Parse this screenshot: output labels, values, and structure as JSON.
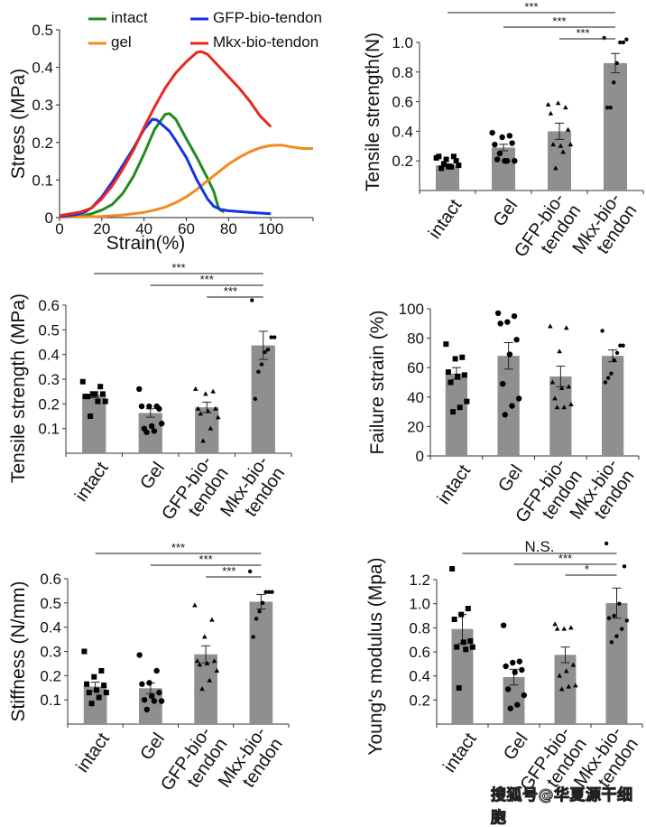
{
  "watermark": "搜狐号@华夏源干细胞",
  "category_labels": [
    [
      "intact"
    ],
    [
      "Gel"
    ],
    [
      "GFP-bio-",
      "tendon"
    ],
    [
      "Mkx-bio-",
      "tendon"
    ]
  ],
  "chart_data": [
    {
      "id": "stress-strain",
      "type": "line",
      "title": "",
      "xlabel": "Strain(%)",
      "ylabel": "Stress (MPa)",
      "xlim": [
        0,
        120
      ],
      "ylim": [
        0,
        0.5
      ],
      "xticks": [
        0,
        20,
        40,
        60,
        80,
        100
      ],
      "yticks": [
        0,
        0.1,
        0.2,
        0.3,
        0.4,
        0.5
      ],
      "ytick_labels": [
        "0",
        "0.1",
        "0.2",
        "0.3",
        "0.4",
        "0.5"
      ],
      "legend": "top",
      "series": [
        {
          "name": "intact",
          "color": "#1e8c1e",
          "x": [
            0,
            10,
            15,
            20,
            25,
            30,
            35,
            40,
            45,
            50,
            52,
            55,
            60,
            65,
            70,
            73,
            75,
            76,
            78
          ],
          "y": [
            0.001,
            0.004,
            0.01,
            0.02,
            0.035,
            0.065,
            0.11,
            0.17,
            0.235,
            0.275,
            0.277,
            0.262,
            0.21,
            0.16,
            0.105,
            0.07,
            0.03,
            0.02,
            0.015
          ]
        },
        {
          "name": "gel",
          "color": "#f28a1e",
          "x": [
            0,
            20,
            30,
            40,
            45,
            50,
            55,
            60,
            65,
            70,
            75,
            80,
            85,
            90,
            95,
            100,
            105,
            110,
            115,
            120
          ],
          "y": [
            0.001,
            0.003,
            0.007,
            0.014,
            0.02,
            0.028,
            0.04,
            0.055,
            0.075,
            0.098,
            0.12,
            0.142,
            0.16,
            0.175,
            0.186,
            0.192,
            0.193,
            0.188,
            0.184,
            0.184
          ]
        },
        {
          "name": "GFP-bio-tendon",
          "color": "#1432e6",
          "x": [
            0,
            8,
            12,
            15,
            20,
            25,
            30,
            35,
            40,
            44,
            46,
            48,
            52,
            55,
            60,
            65,
            70,
            73,
            76,
            80,
            90,
            100
          ],
          "y": [
            0.003,
            0.008,
            0.015,
            0.025,
            0.055,
            0.095,
            0.14,
            0.185,
            0.235,
            0.262,
            0.26,
            0.25,
            0.23,
            0.205,
            0.16,
            0.1,
            0.05,
            0.03,
            0.022,
            0.018,
            0.014,
            0.01
          ]
        },
        {
          "name": "Mkx-bio-tendon",
          "color": "#e8281e",
          "x": [
            0,
            10,
            15,
            20,
            25,
            30,
            35,
            40,
            45,
            50,
            55,
            60,
            65,
            67,
            70,
            75,
            80,
            85,
            90,
            95,
            100
          ],
          "y": [
            0.005,
            0.015,
            0.025,
            0.05,
            0.085,
            0.13,
            0.18,
            0.24,
            0.295,
            0.345,
            0.385,
            0.415,
            0.44,
            0.442,
            0.435,
            0.405,
            0.375,
            0.345,
            0.31,
            0.27,
            0.242
          ]
        }
      ]
    },
    {
      "id": "tensile-n",
      "type": "bar",
      "ylabel": "Tensile strength(N)",
      "ylim": [
        0,
        1.0
      ],
      "yticks": [
        0.2,
        0.4,
        0.6,
        0.8,
        1.0
      ],
      "ytick_labels": [
        "0.2",
        "0.4",
        "0.6",
        "0.8",
        "1.0"
      ],
      "categories": [
        "intact",
        "Gel",
        "GFP-bio-tendon",
        "Mkx-bio-tendon"
      ],
      "values": [
        0.17,
        0.29,
        0.4,
        0.86
      ],
      "errors": [
        0.01,
        0.022,
        0.055,
        0.065
      ],
      "markers": [
        "square",
        "circle",
        "triangle",
        "dot"
      ],
      "points": [
        [
          0.22,
          0.23,
          0.21,
          0.23,
          0.2,
          0.16,
          0.15,
          0.17,
          0.16,
          0.18
        ],
        [
          0.39,
          0.37,
          0.36,
          0.31,
          0.32,
          0.2,
          0.21,
          0.2,
          0.2,
          0.25
        ],
        [
          0.58,
          0.56,
          0.59,
          0.52,
          0.41,
          0.3,
          0.31,
          0.31,
          0.26,
          0.15
        ],
        [
          1.03,
          1.02,
          1.0,
          1.0,
          0.86,
          0.73,
          0.56,
          0.56
        ]
      ],
      "significance": [
        {
          "from": 0,
          "to": 3,
          "label": "***"
        },
        {
          "from": 1,
          "to": 3,
          "label": "***"
        },
        {
          "from": 2,
          "to": 3,
          "label": "***"
        }
      ]
    },
    {
      "id": "tensile-mpa",
      "type": "bar",
      "ylabel": "Tensile strength (MPa)",
      "ylim": [
        0,
        0.6
      ],
      "yticks": [
        0.1,
        0.2,
        0.3,
        0.4,
        0.5,
        0.6
      ],
      "ytick_labels": [
        "0.1",
        "0.2",
        "0.3",
        "0.4",
        "0.5",
        "0.6"
      ],
      "categories": [
        "intact",
        "Gel",
        "GFP-bio-tendon",
        "Mkx-bio-tendon"
      ],
      "values": [
        0.237,
        0.163,
        0.186,
        0.437
      ],
      "errors": [
        0.012,
        0.017,
        0.021,
        0.057
      ],
      "markers": [
        "square",
        "circle",
        "triangle",
        "dot"
      ],
      "points": [
        [
          0.29,
          0.27,
          0.24,
          0.23,
          0.24,
          0.24,
          0.23,
          0.21,
          0.21,
          0.15
        ],
        [
          0.26,
          0.19,
          0.19,
          0.19,
          0.18,
          0.11,
          0.1,
          0.12,
          0.09,
          0.085
        ],
        [
          0.26,
          0.25,
          0.24,
          0.18,
          0.18,
          0.17,
          0.16,
          0.145,
          0.1,
          0.05
        ],
        [
          0.62,
          0.47,
          0.47,
          0.42,
          0.41,
          0.36,
          0.33,
          0.22
        ]
      ],
      "significance": [
        {
          "from": 0,
          "to": 3,
          "label": "***"
        },
        {
          "from": 1,
          "to": 3,
          "label": "***"
        },
        {
          "from": 2,
          "to": 3,
          "label": "***"
        }
      ]
    },
    {
      "id": "failure-strain",
      "type": "bar",
      "ylabel": "Failure strain (%)",
      "ylim": [
        0,
        100
      ],
      "yticks": [
        0,
        20,
        40,
        60,
        80,
        100
      ],
      "ytick_labels": [
        "0",
        "20",
        "40",
        "60",
        "80",
        "100"
      ],
      "categories": [
        "intact",
        "Gel",
        "GFP-bio-tendon",
        "Mkx-bio-tendon"
      ],
      "values": [
        56,
        68,
        54,
        68
      ],
      "errors": [
        4,
        9,
        7,
        4
      ],
      "markers": [
        "square",
        "circle",
        "triangle",
        "dot"
      ],
      "points": [
        [
          76,
          67,
          66,
          57,
          55,
          54,
          50,
          37,
          33,
          30
        ],
        [
          97,
          95,
          91,
          90,
          79,
          69,
          49,
          39,
          34,
          28
        ],
        [
          88,
          87,
          71,
          50,
          47,
          46,
          39,
          35,
          33,
          33
        ],
        [
          85,
          75,
          75,
          70,
          65,
          56,
          53,
          50
        ]
      ],
      "significance": []
    },
    {
      "id": "stiffness",
      "type": "bar",
      "ylabel": "Stiffness (N/mm)",
      "ylim": [
        0,
        0.6
      ],
      "yticks": [
        0.1,
        0.2,
        0.3,
        0.4,
        0.5,
        0.6
      ],
      "ytick_labels": [
        "0.1",
        "0.2",
        "0.3",
        "0.4",
        "0.5",
        "0.6"
      ],
      "categories": [
        "intact",
        "Gel",
        "GFP-bio-tendon",
        "Mkx-bio-tendon"
      ],
      "values": [
        0.155,
        0.148,
        0.288,
        0.505
      ],
      "errors": [
        0.018,
        0.022,
        0.035,
        0.03
      ],
      "markers": [
        "square",
        "circle",
        "triangle",
        "dot"
      ],
      "points": [
        [
          0.3,
          0.22,
          0.195,
          0.165,
          0.16,
          0.14,
          0.13,
          0.13,
          0.11,
          0.085
        ],
        [
          0.285,
          0.22,
          0.17,
          0.165,
          0.13,
          0.115,
          0.1,
          0.095,
          0.095,
          0.06
        ],
        [
          0.49,
          0.43,
          0.36,
          0.26,
          0.26,
          0.25,
          0.245,
          0.22,
          0.18,
          0.145
        ],
        [
          0.63,
          0.545,
          0.545,
          0.545,
          0.5,
          0.465,
          0.435,
          0.36
        ]
      ],
      "significance": [
        {
          "from": 0,
          "to": 3,
          "label": "***"
        },
        {
          "from": 1,
          "to": 3,
          "label": "***"
        },
        {
          "from": 2,
          "to": 3,
          "label": "***"
        }
      ]
    },
    {
      "id": "youngs-modulus",
      "type": "bar",
      "ylabel": "Young's modulus (Mpa)",
      "ylim": [
        0,
        1.2
      ],
      "yticks": [
        0.2,
        0.4,
        0.6,
        0.8,
        1.0,
        1.2
      ],
      "ytick_labels": [
        "0.2",
        "0.4",
        "0.6",
        "0.8",
        "1.0",
        "1.2"
      ],
      "categories": [
        "intact",
        "Gel",
        "GFP-bio-tendon",
        "Mkx-bio-tendon"
      ],
      "values": [
        0.79,
        0.39,
        0.575,
        1.005
      ],
      "errors": [
        0.12,
        0.065,
        0.065,
        0.125
      ],
      "markers": [
        "square",
        "circle",
        "triangle",
        "dot"
      ],
      "points": [
        [
          1.29,
          0.96,
          0.91,
          0.87,
          0.69,
          0.68,
          0.64,
          0.64,
          0.62,
          0.3
        ],
        [
          0.82,
          0.52,
          0.51,
          0.48,
          0.45,
          0.43,
          0.29,
          0.24,
          0.16,
          0.13
        ],
        [
          0.83,
          0.8,
          0.79,
          0.79,
          0.49,
          0.44,
          0.4,
          0.32,
          0.31,
          0.29
        ],
        [
          1.5,
          1.31,
          1.0,
          0.9,
          0.88,
          0.86,
          0.79,
          0.73,
          0.68
        ]
      ],
      "significance": [
        {
          "from": 0,
          "to": 3,
          "label": "N.S."
        },
        {
          "from": 1,
          "to": 3,
          "label": "***"
        },
        {
          "from": 2,
          "to": 3,
          "label": "*"
        }
      ]
    }
  ]
}
